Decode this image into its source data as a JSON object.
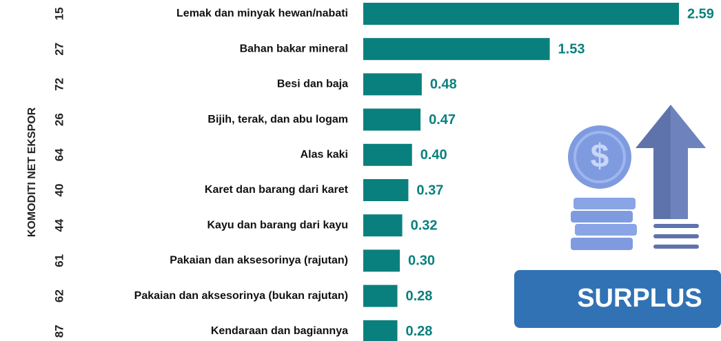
{
  "chart_data": {
    "type": "hbar",
    "y_axis_label": "KOMODITI NET EKSPOR",
    "codes": [
      "15",
      "27",
      "72",
      "26",
      "64",
      "40",
      "44",
      "61",
      "62",
      "87"
    ],
    "categories": [
      "Lemak dan minyak hewan/nabati",
      "Bahan bakar mineral",
      "Besi dan baja",
      "Bijih, terak, dan abu logam",
      "Alas kaki",
      "Karet dan barang dari karet",
      "Kayu dan barang dari kayu",
      "Pakaian dan aksesorinya (rajutan)",
      "Pakaian dan aksesorinya (bukan rajutan)",
      "Kendaraan dan bagiannya"
    ],
    "values": [
      2.59,
      1.53,
      0.48,
      0.47,
      0.4,
      0.37,
      0.32,
      0.3,
      0.28,
      0.28
    ],
    "value_labels": [
      "2.59",
      "1.53",
      "0.48",
      "0.47",
      "0.40",
      "0.37",
      "0.32",
      "0.30",
      "0.28",
      "0.28"
    ],
    "color": "#0a807e",
    "annotation": "SURPLUS"
  }
}
